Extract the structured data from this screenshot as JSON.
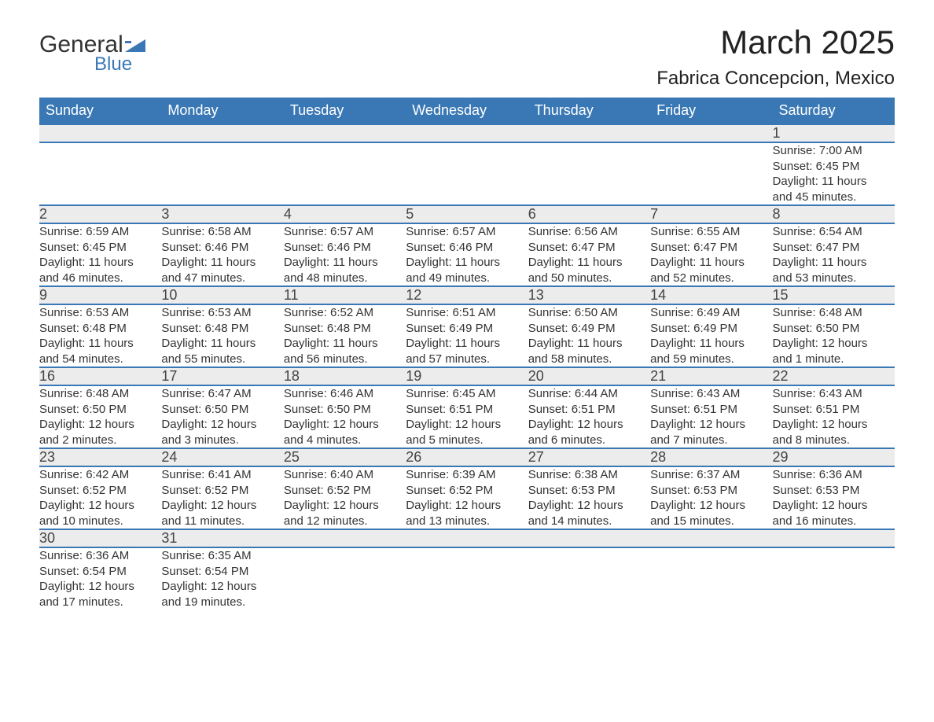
{
  "logo": {
    "line1": "General",
    "line2": "Blue"
  },
  "title": "March 2025",
  "location": "Fabrica Concepcion, Mexico",
  "colors": {
    "header_bg": "#3a78b5",
    "header_text": "#ffffff",
    "daynum_bg": "#ececec",
    "rule": "#3a78b5",
    "page_bg": "#ffffff",
    "text": "#333333"
  },
  "weekdays": [
    "Sunday",
    "Monday",
    "Tuesday",
    "Wednesday",
    "Thursday",
    "Friday",
    "Saturday"
  ],
  "weeks": [
    [
      null,
      null,
      null,
      null,
      null,
      null,
      {
        "n": "1",
        "sr": "Sunrise: 7:00 AM",
        "ss": "Sunset: 6:45 PM",
        "dl1": "Daylight: 11 hours",
        "dl2": "and 45 minutes."
      }
    ],
    [
      {
        "n": "2",
        "sr": "Sunrise: 6:59 AM",
        "ss": "Sunset: 6:45 PM",
        "dl1": "Daylight: 11 hours",
        "dl2": "and 46 minutes."
      },
      {
        "n": "3",
        "sr": "Sunrise: 6:58 AM",
        "ss": "Sunset: 6:46 PM",
        "dl1": "Daylight: 11 hours",
        "dl2": "and 47 minutes."
      },
      {
        "n": "4",
        "sr": "Sunrise: 6:57 AM",
        "ss": "Sunset: 6:46 PM",
        "dl1": "Daylight: 11 hours",
        "dl2": "and 48 minutes."
      },
      {
        "n": "5",
        "sr": "Sunrise: 6:57 AM",
        "ss": "Sunset: 6:46 PM",
        "dl1": "Daylight: 11 hours",
        "dl2": "and 49 minutes."
      },
      {
        "n": "6",
        "sr": "Sunrise: 6:56 AM",
        "ss": "Sunset: 6:47 PM",
        "dl1": "Daylight: 11 hours",
        "dl2": "and 50 minutes."
      },
      {
        "n": "7",
        "sr": "Sunrise: 6:55 AM",
        "ss": "Sunset: 6:47 PM",
        "dl1": "Daylight: 11 hours",
        "dl2": "and 52 minutes."
      },
      {
        "n": "8",
        "sr": "Sunrise: 6:54 AM",
        "ss": "Sunset: 6:47 PM",
        "dl1": "Daylight: 11 hours",
        "dl2": "and 53 minutes."
      }
    ],
    [
      {
        "n": "9",
        "sr": "Sunrise: 6:53 AM",
        "ss": "Sunset: 6:48 PM",
        "dl1": "Daylight: 11 hours",
        "dl2": "and 54 minutes."
      },
      {
        "n": "10",
        "sr": "Sunrise: 6:53 AM",
        "ss": "Sunset: 6:48 PM",
        "dl1": "Daylight: 11 hours",
        "dl2": "and 55 minutes."
      },
      {
        "n": "11",
        "sr": "Sunrise: 6:52 AM",
        "ss": "Sunset: 6:48 PM",
        "dl1": "Daylight: 11 hours",
        "dl2": "and 56 minutes."
      },
      {
        "n": "12",
        "sr": "Sunrise: 6:51 AM",
        "ss": "Sunset: 6:49 PM",
        "dl1": "Daylight: 11 hours",
        "dl2": "and 57 minutes."
      },
      {
        "n": "13",
        "sr": "Sunrise: 6:50 AM",
        "ss": "Sunset: 6:49 PM",
        "dl1": "Daylight: 11 hours",
        "dl2": "and 58 minutes."
      },
      {
        "n": "14",
        "sr": "Sunrise: 6:49 AM",
        "ss": "Sunset: 6:49 PM",
        "dl1": "Daylight: 11 hours",
        "dl2": "and 59 minutes."
      },
      {
        "n": "15",
        "sr": "Sunrise: 6:48 AM",
        "ss": "Sunset: 6:50 PM",
        "dl1": "Daylight: 12 hours",
        "dl2": "and 1 minute."
      }
    ],
    [
      {
        "n": "16",
        "sr": "Sunrise: 6:48 AM",
        "ss": "Sunset: 6:50 PM",
        "dl1": "Daylight: 12 hours",
        "dl2": "and 2 minutes."
      },
      {
        "n": "17",
        "sr": "Sunrise: 6:47 AM",
        "ss": "Sunset: 6:50 PM",
        "dl1": "Daylight: 12 hours",
        "dl2": "and 3 minutes."
      },
      {
        "n": "18",
        "sr": "Sunrise: 6:46 AM",
        "ss": "Sunset: 6:50 PM",
        "dl1": "Daylight: 12 hours",
        "dl2": "and 4 minutes."
      },
      {
        "n": "19",
        "sr": "Sunrise: 6:45 AM",
        "ss": "Sunset: 6:51 PM",
        "dl1": "Daylight: 12 hours",
        "dl2": "and 5 minutes."
      },
      {
        "n": "20",
        "sr": "Sunrise: 6:44 AM",
        "ss": "Sunset: 6:51 PM",
        "dl1": "Daylight: 12 hours",
        "dl2": "and 6 minutes."
      },
      {
        "n": "21",
        "sr": "Sunrise: 6:43 AM",
        "ss": "Sunset: 6:51 PM",
        "dl1": "Daylight: 12 hours",
        "dl2": "and 7 minutes."
      },
      {
        "n": "22",
        "sr": "Sunrise: 6:43 AM",
        "ss": "Sunset: 6:51 PM",
        "dl1": "Daylight: 12 hours",
        "dl2": "and 8 minutes."
      }
    ],
    [
      {
        "n": "23",
        "sr": "Sunrise: 6:42 AM",
        "ss": "Sunset: 6:52 PM",
        "dl1": "Daylight: 12 hours",
        "dl2": "and 10 minutes."
      },
      {
        "n": "24",
        "sr": "Sunrise: 6:41 AM",
        "ss": "Sunset: 6:52 PM",
        "dl1": "Daylight: 12 hours",
        "dl2": "and 11 minutes."
      },
      {
        "n": "25",
        "sr": "Sunrise: 6:40 AM",
        "ss": "Sunset: 6:52 PM",
        "dl1": "Daylight: 12 hours",
        "dl2": "and 12 minutes."
      },
      {
        "n": "26",
        "sr": "Sunrise: 6:39 AM",
        "ss": "Sunset: 6:52 PM",
        "dl1": "Daylight: 12 hours",
        "dl2": "and 13 minutes."
      },
      {
        "n": "27",
        "sr": "Sunrise: 6:38 AM",
        "ss": "Sunset: 6:53 PM",
        "dl1": "Daylight: 12 hours",
        "dl2": "and 14 minutes."
      },
      {
        "n": "28",
        "sr": "Sunrise: 6:37 AM",
        "ss": "Sunset: 6:53 PM",
        "dl1": "Daylight: 12 hours",
        "dl2": "and 15 minutes."
      },
      {
        "n": "29",
        "sr": "Sunrise: 6:36 AM",
        "ss": "Sunset: 6:53 PM",
        "dl1": "Daylight: 12 hours",
        "dl2": "and 16 minutes."
      }
    ],
    [
      {
        "n": "30",
        "sr": "Sunrise: 6:36 AM",
        "ss": "Sunset: 6:54 PM",
        "dl1": "Daylight: 12 hours",
        "dl2": "and 17 minutes."
      },
      {
        "n": "31",
        "sr": "Sunrise: 6:35 AM",
        "ss": "Sunset: 6:54 PM",
        "dl1": "Daylight: 12 hours",
        "dl2": "and 19 minutes."
      },
      null,
      null,
      null,
      null,
      null
    ]
  ]
}
